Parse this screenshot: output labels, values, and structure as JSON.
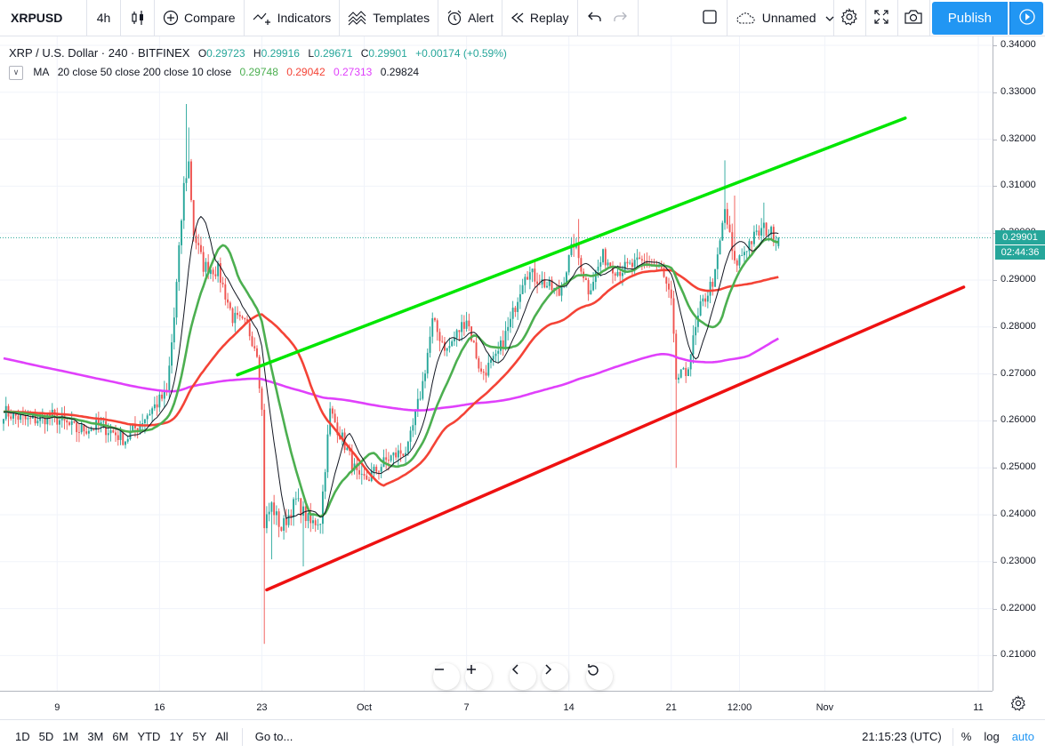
{
  "toolbar": {
    "symbol": "XRPUSD",
    "interval": "4h",
    "compare": "Compare",
    "indicators": "Indicators",
    "templates": "Templates",
    "alert": "Alert",
    "replay": "Replay",
    "layout_name": "Unnamed",
    "publish": "Publish"
  },
  "legend": {
    "title": "XRP / U.S. Dollar · 240 · BITFINEX",
    "open_label": "O",
    "open": "0.29723",
    "high_label": "H",
    "high": "0.29916",
    "low_label": "L",
    "low": "0.29671",
    "close_label": "C",
    "close": "0.29901",
    "change": "+0.00174 (+0.59%)",
    "ma_label": "MA",
    "ma_params": "20 close 50 close 200 close 10 close",
    "ma_values": [
      "0.29748",
      "0.29042",
      "0.27313",
      "0.29824"
    ]
  },
  "price_scale": {
    "ticks": [
      "0.34000",
      "0.33000",
      "0.32000",
      "0.31000",
      "0.30000",
      "0.29000",
      "0.28000",
      "0.27000",
      "0.26000",
      "0.25000",
      "0.24000",
      "0.23000",
      "0.22000",
      "0.21000"
    ],
    "last_price": "0.29901",
    "countdown": "02:44:36"
  },
  "time_axis": {
    "labels": [
      "9",
      "16",
      "23",
      "Oct",
      "7",
      "14",
      "21",
      "12:00",
      "Nov",
      "11"
    ]
  },
  "bottom": {
    "ranges": [
      "1D",
      "5D",
      "1M",
      "3M",
      "6M",
      "YTD",
      "1Y",
      "5Y",
      "All"
    ],
    "goto": "Go to...",
    "clock": "21:15:23 (UTC)",
    "percent": "%",
    "log": "log",
    "auto": "auto"
  },
  "colors": {
    "up": "#26a69a",
    "down": "#ef5350",
    "ma20": "#4caf50",
    "ma50": "#f44336",
    "ma200": "#e040fb",
    "ma10": "#131722",
    "upper_trend": "#00e600",
    "lower_trend": "#ee1111",
    "accent": "#2196f3"
  },
  "chart_data": {
    "type": "candlestick",
    "ylim": [
      0.205,
      0.342
    ],
    "x_ticks": [
      [
        "9",
        22
      ],
      [
        "16",
        64
      ],
      [
        "23",
        106
      ],
      [
        "Oct",
        148
      ],
      [
        "7",
        190
      ],
      [
        "14",
        232
      ],
      [
        "21",
        274
      ],
      [
        "12:00",
        302
      ],
      [
        "Nov",
        337
      ],
      [
        "11",
        400
      ]
    ],
    "anchors": [
      [
        0,
        0.262
      ],
      [
        10,
        0.26
      ],
      [
        20,
        0.261
      ],
      [
        30,
        0.258
      ],
      [
        40,
        0.259
      ],
      [
        50,
        0.256
      ],
      [
        60,
        0.262
      ],
      [
        67,
        0.266
      ],
      [
        70,
        0.282
      ],
      [
        74,
        0.31
      ],
      [
        76,
        0.315
      ],
      [
        78,
        0.3
      ],
      [
        82,
        0.293
      ],
      [
        88,
        0.292
      ],
      [
        94,
        0.282
      ],
      [
        100,
        0.28
      ],
      [
        104,
        0.275
      ],
      [
        106,
        0.262
      ],
      [
        107,
        0.238
      ],
      [
        110,
        0.242
      ],
      [
        114,
        0.237
      ],
      [
        120,
        0.243
      ],
      [
        126,
        0.238
      ],
      [
        130,
        0.239
      ],
      [
        134,
        0.262
      ],
      [
        140,
        0.255
      ],
      [
        146,
        0.247
      ],
      [
        150,
        0.248
      ],
      [
        158,
        0.252
      ],
      [
        166,
        0.254
      ],
      [
        172,
        0.268
      ],
      [
        176,
        0.281
      ],
      [
        182,
        0.275
      ],
      [
        190,
        0.282
      ],
      [
        196,
        0.27
      ],
      [
        202,
        0.273
      ],
      [
        208,
        0.281
      ],
      [
        214,
        0.292
      ],
      [
        220,
        0.29
      ],
      [
        228,
        0.287
      ],
      [
        234,
        0.298
      ],
      [
        240,
        0.288
      ],
      [
        246,
        0.295
      ],
      [
        252,
        0.292
      ],
      [
        258,
        0.293
      ],
      [
        264,
        0.294
      ],
      [
        270,
        0.292
      ],
      [
        274,
        0.285
      ],
      [
        276,
        0.269
      ],
      [
        280,
        0.27
      ],
      [
        286,
        0.284
      ],
      [
        292,
        0.291
      ],
      [
        296,
        0.305
      ],
      [
        300,
        0.293
      ],
      [
        306,
        0.298
      ],
      [
        312,
        0.301
      ],
      [
        318,
        0.299
      ]
    ],
    "upper_trendline": [
      [
        96,
        0.2698
      ],
      [
        370,
        0.3245
      ]
    ],
    "lower_trendline": [
      [
        108,
        0.224
      ],
      [
        394,
        0.2885
      ]
    ],
    "ma200_start": 0.2848
  }
}
